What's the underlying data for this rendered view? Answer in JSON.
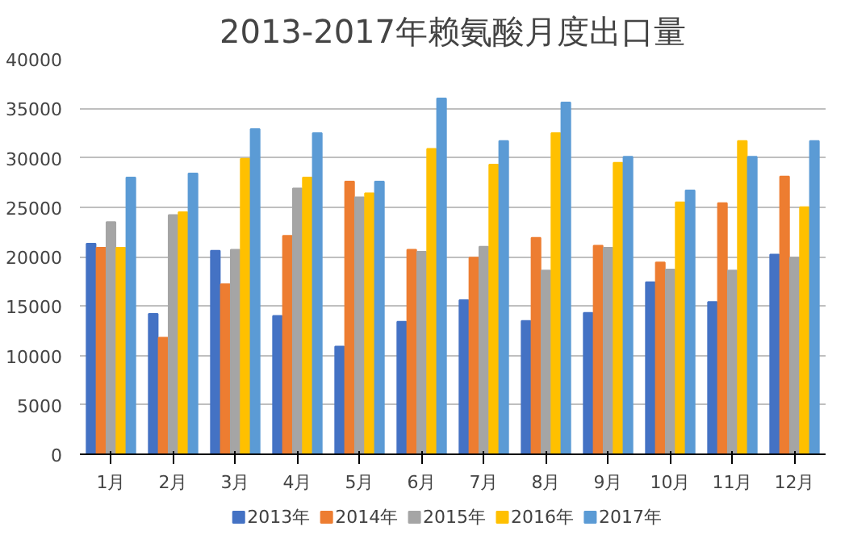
{
  "chart_data": {
    "type": "bar",
    "title": "2013-2017年赖氨酸月度出口量",
    "categories": [
      "1月",
      "2月",
      "3月",
      "4月",
      "5月",
      "6月",
      "7月",
      "8月",
      "9月",
      "10月",
      "11月",
      "12月"
    ],
    "series": [
      {
        "name": "2013年",
        "color": "#4472c4",
        "values": [
          21300,
          14200,
          20600,
          14000,
          10900,
          13400,
          15600,
          13500,
          14300,
          17400,
          15400,
          20200
        ]
      },
      {
        "name": "2014年",
        "color": "#ed7d31",
        "values": [
          20900,
          11800,
          17200,
          22100,
          27600,
          20700,
          19900,
          21900,
          21100,
          19400,
          25400,
          28100
        ]
      },
      {
        "name": "2015年",
        "color": "#a5a5a5",
        "values": [
          23500,
          24200,
          20700,
          26900,
          26000,
          20500,
          21000,
          18600,
          20900,
          18700,
          18600,
          19900
        ]
      },
      {
        "name": "2016年",
        "color": "#ffc000",
        "values": [
          20900,
          24500,
          29900,
          28000,
          26400,
          30900,
          29300,
          32500,
          29500,
          25500,
          31700,
          25000
        ]
      },
      {
        "name": "2017年",
        "color": "#5b9bd5",
        "values": [
          28000,
          28400,
          32900,
          32500,
          27600,
          36000,
          31700,
          35600,
          30100,
          26700,
          30100,
          31700
        ]
      }
    ],
    "ylim": [
      0,
      40000
    ],
    "yticks": [
      0,
      5000,
      10000,
      15000,
      20000,
      25000,
      30000,
      35000,
      40000
    ],
    "grid": "y",
    "legend": "bottom"
  }
}
